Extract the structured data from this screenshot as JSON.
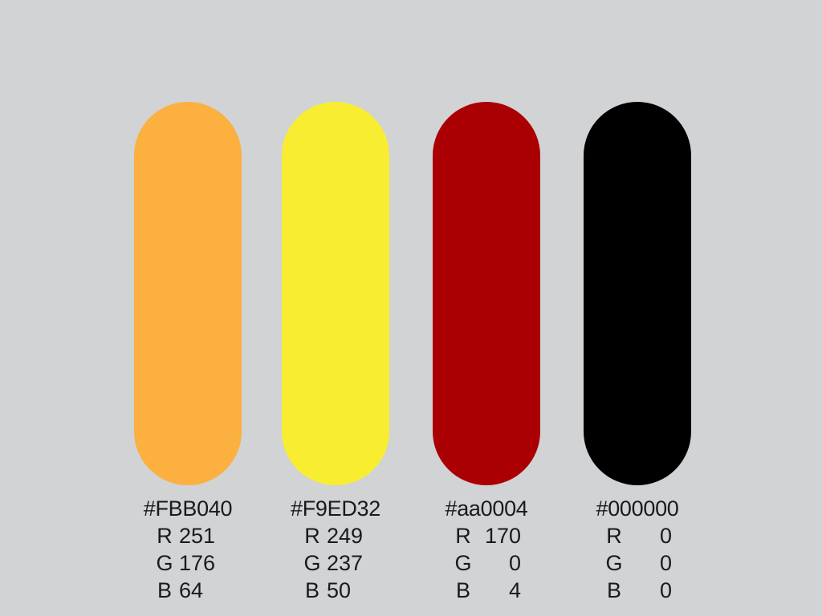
{
  "palette": {
    "swatches": [
      {
        "hex": "#FBB040",
        "color": "#FBB040",
        "r": "251",
        "g": "176",
        "b": "64",
        "r_label": "R",
        "g_label": "G",
        "b_label": "B"
      },
      {
        "hex": "#F9ED32",
        "color": "#F9ED32",
        "r": "249",
        "g": "237",
        "b": "50",
        "r_label": "R",
        "g_label": "G",
        "b_label": "B"
      },
      {
        "hex": "#aa0004",
        "color": "#aa0004",
        "r": "170",
        "g": "0",
        "b": "4",
        "r_label": "R",
        "g_label": "G",
        "b_label": "B"
      },
      {
        "hex": "#000000",
        "color": "#000000",
        "r": "0",
        "g": "0",
        "b": "0",
        "r_label": "R",
        "g_label": "G",
        "b_label": "B"
      }
    ]
  }
}
